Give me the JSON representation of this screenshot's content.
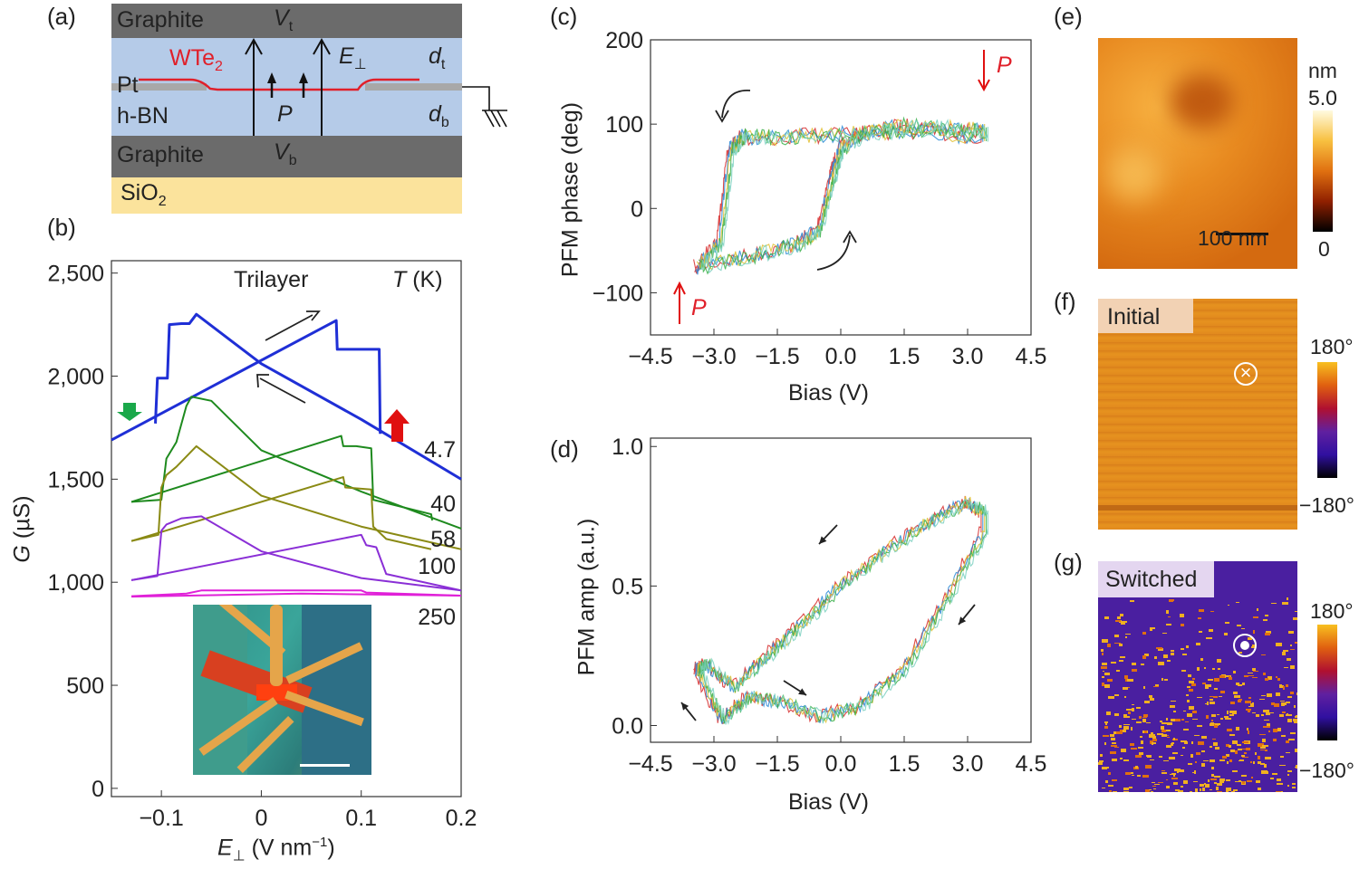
{
  "panels": {
    "a": "(a)",
    "b": "(b)",
    "c": "(c)",
    "d": "(d)",
    "e": "(e)",
    "f": "(f)",
    "g": "(g)"
  },
  "diagram_a": {
    "graphite_top": "Graphite",
    "vt_var": "V",
    "vt_sub": "t",
    "wte2": "WTe",
    "wte2_sub": "2",
    "e_var": "E",
    "e_sub": "⊥",
    "dt_var": "d",
    "dt_sub": "t",
    "pt": "Pt",
    "hbn": "h-BN",
    "p": "P",
    "db_var": "d",
    "db_sub": "b",
    "graphite_bottom": "Graphite",
    "vb_var": "V",
    "vb_sub": "b",
    "sio2": "SiO",
    "sio2_sub": "2",
    "colors": {
      "graphite": "#6b6b6b",
      "hbn": "#b5cbe8",
      "sio2": "#fbe39c",
      "wte2": "#e0202a",
      "pt": "#a8a8a8"
    }
  },
  "chart_data": [
    {
      "panel": "b",
      "type": "line",
      "title": "Trilayer",
      "legend_title_var": "T",
      "legend_title_unit": "(K)",
      "xlabel_var": "E",
      "xlabel_sub": "⊥",
      "xlabel_unit": "(V nm",
      "xlabel_sup": "−1",
      "xlabel_close": ")",
      "ylabel_var": "G",
      "ylabel_unit": "(µS)",
      "xlim": [
        -0.15,
        0.2
      ],
      "ylim": [
        -40,
        2560
      ],
      "xticks": [
        {
          "v": -0.1,
          "label": "−0.1"
        },
        {
          "v": 0,
          "label": "0"
        },
        {
          "v": 0.1,
          "label": "0.1"
        },
        {
          "v": 0.2,
          "label": "0.2"
        }
      ],
      "yticks": [
        {
          "v": 0,
          "label": "0"
        },
        {
          "v": 500,
          "label": "500"
        },
        {
          "v": 1000,
          "label": "1,000"
        },
        {
          "v": 1500,
          "label": "1,500"
        },
        {
          "v": 2000,
          "label": "2,000"
        },
        {
          "v": 2500,
          "label": "2,500"
        }
      ],
      "series": [
        {
          "name": "4.7",
          "color": "#1f2fd6",
          "width": 3,
          "forward": [
            [
              -0.15,
              1690
            ],
            [
              0.075,
              2270
            ],
            [
              0.076,
              2130
            ],
            [
              0.118,
              2130
            ],
            [
              0.119,
              1720
            ]
          ],
          "backward": [
            [
              0.2,
              1500
            ],
            [
              0.1,
              1790
            ],
            [
              0,
              2060
            ],
            [
              -0.065,
              2300
            ],
            [
              -0.072,
              2255
            ],
            [
              -0.08,
              2255
            ],
            [
              -0.092,
              2250
            ],
            [
              -0.094,
              1990
            ],
            [
              -0.104,
              1990
            ],
            [
              -0.106,
              1770
            ]
          ]
        },
        {
          "name": "40",
          "color": "#1e8a1e",
          "width": 2,
          "forward": [
            [
              -0.13,
              1390
            ],
            [
              0.08,
              1710
            ],
            [
              0.082,
              1660
            ],
            [
              0.095,
              1660
            ],
            [
              0.11,
              1650
            ],
            [
              0.112,
              1400
            ],
            [
              0.17,
              1330
            ],
            [
              0.171,
              1300
            ]
          ],
          "backward": [
            [
              0.2,
              1260
            ],
            [
              0.1,
              1440
            ],
            [
              0,
              1640
            ],
            [
              -0.05,
              1880
            ],
            [
              -0.07,
              1900
            ],
            [
              -0.075,
              1855
            ],
            [
              -0.085,
              1680
            ],
            [
              -0.09,
              1640
            ],
            [
              -0.095,
              1600
            ],
            [
              -0.1,
              1400
            ],
            [
              -0.13,
              1390
            ]
          ]
        },
        {
          "name": "58",
          "color": "#8a8a14",
          "width": 2,
          "forward": [
            [
              -0.13,
              1200
            ],
            [
              0.082,
              1510
            ],
            [
              0.084,
              1460
            ],
            [
              0.11,
              1450
            ],
            [
              0.112,
              1270
            ],
            [
              0.125,
              1210
            ],
            [
              0.17,
              1160
            ]
          ],
          "backward": [
            [
              0.2,
              1160
            ],
            [
              0.1,
              1270
            ],
            [
              0,
              1420
            ],
            [
              -0.065,
              1660
            ],
            [
              -0.075,
              1610
            ],
            [
              -0.085,
              1560
            ],
            [
              -0.095,
              1520
            ],
            [
              -0.1,
              1460
            ],
            [
              -0.103,
              1230
            ],
            [
              -0.13,
              1200
            ]
          ]
        },
        {
          "name": "100",
          "color": "#8a2fd6",
          "width": 2,
          "forward": [
            [
              -0.13,
              1010
            ],
            [
              0.1,
              1230
            ],
            [
              0.105,
              1180
            ],
            [
              0.115,
              1170
            ],
            [
              0.125,
              1040
            ],
            [
              0.2,
              960
            ]
          ],
          "backward": [
            [
              0.2,
              960
            ],
            [
              0.1,
              1020
            ],
            [
              0,
              1150
            ],
            [
              -0.06,
              1320
            ],
            [
              -0.08,
              1310
            ],
            [
              -0.095,
              1280
            ],
            [
              -0.1,
              1250
            ],
            [
              -0.104,
              1030
            ],
            [
              -0.13,
              1010
            ]
          ]
        },
        {
          "name": "250",
          "color": "#e020d8",
          "width": 2,
          "forward": [
            [
              -0.13,
              930
            ],
            [
              0.04,
              945
            ],
            [
              0.2,
              935
            ]
          ],
          "backward": [
            [
              0.2,
              935
            ],
            [
              0.105,
              950
            ],
            [
              0.1,
              960
            ],
            [
              -0.06,
              960
            ],
            [
              -0.075,
              945
            ],
            [
              -0.13,
              932
            ]
          ]
        }
      ],
      "annotations": {
        "green_arrow": "down",
        "red_arrow": "up",
        "sweep_arrows": [
          "up-right",
          "up-left"
        ]
      }
    },
    {
      "panel": "c",
      "type": "scatter",
      "xlabel": "Bias (V)",
      "ylabel": "PFM phase (deg)",
      "xlim": [
        -4.5,
        4.5
      ],
      "ylim": [
        -150,
        200
      ],
      "xticks": [
        {
          "v": -4.5,
          "label": "−4.5"
        },
        {
          "v": -3,
          "label": "−3.0"
        },
        {
          "v": -1.5,
          "label": "−1.5"
        },
        {
          "v": 0,
          "label": "0.0"
        },
        {
          "v": 1.5,
          "label": "1.5"
        },
        {
          "v": 3,
          "label": "3.0"
        },
        {
          "v": 4.5,
          "label": "4.5"
        }
      ],
      "yticks": [
        {
          "v": -100,
          "label": "−100"
        },
        {
          "v": 0,
          "label": "0"
        },
        {
          "v": 100,
          "label": "100"
        },
        {
          "v": 200,
          "label": "200"
        }
      ],
      "polarization_label": "P",
      "loop": [
        [
          -3.4,
          -70
        ],
        [
          -2,
          -55
        ],
        [
          -1,
          -42
        ],
        [
          -0.5,
          -25
        ],
        [
          -0.2,
          35
        ],
        [
          0,
          70
        ],
        [
          0.5,
          88
        ],
        [
          1.5,
          98
        ],
        [
          2.5,
          95
        ],
        [
          3.4,
          92
        ],
        [
          3.4,
          85
        ],
        [
          1.5,
          92
        ],
        [
          0,
          88
        ],
        [
          -1.5,
          84
        ],
        [
          -2.3,
          85
        ],
        [
          -2.6,
          70
        ],
        [
          -2.85,
          -40
        ],
        [
          -3.4,
          -72
        ]
      ],
      "series_colors": [
        "#d62a2a",
        "#2a8ad6",
        "#e0c030",
        "#3ab04a",
        "#7ad0c0"
      ]
    },
    {
      "panel": "d",
      "type": "scatter",
      "xlabel": "Bias (V)",
      "ylabel": "PFM amp (a.u.)",
      "xlim": [
        -4.5,
        4.5
      ],
      "ylim": [
        -0.06,
        1.03
      ],
      "xticks": [
        {
          "v": -4.5,
          "label": "−4.5"
        },
        {
          "v": -3,
          "label": "−3.0"
        },
        {
          "v": -1.5,
          "label": "−1.5"
        },
        {
          "v": 0,
          "label": "0.0"
        },
        {
          "v": 1.5,
          "label": "1.5"
        },
        {
          "v": 3,
          "label": "3.0"
        },
        {
          "v": 4.5,
          "label": "4.5"
        }
      ],
      "yticks": [
        {
          "v": 0,
          "label": "0.0"
        },
        {
          "v": 0.5,
          "label": "0.5"
        },
        {
          "v": 1,
          "label": "1.0"
        }
      ],
      "loop": [
        [
          -3.4,
          0.2
        ],
        [
          -2.8,
          0.02
        ],
        [
          -2.2,
          0.1
        ],
        [
          -1.5,
          0.09
        ],
        [
          -0.5,
          0.03
        ],
        [
          0.5,
          0.07
        ],
        [
          1.5,
          0.2
        ],
        [
          2.5,
          0.45
        ],
        [
          3.4,
          0.7
        ],
        [
          3.4,
          0.76
        ],
        [
          3.0,
          0.8
        ],
        [
          2,
          0.72
        ],
        [
          1,
          0.62
        ],
        [
          0,
          0.5
        ],
        [
          -1,
          0.35
        ],
        [
          -1.8,
          0.24
        ],
        [
          -2.5,
          0.14
        ],
        [
          -3.2,
          0.22
        ],
        [
          -3.4,
          0.2
        ]
      ],
      "series_colors": [
        "#d62a2a",
        "#2a8ad6",
        "#e0c030",
        "#3ab04a",
        "#7ad0c0"
      ]
    }
  ],
  "panel_e": {
    "unit": "nm",
    "max": "5.0",
    "min": "0",
    "scale_bar": "100 nm"
  },
  "panel_f": {
    "label": "Initial",
    "max": "180°",
    "min": "−180°"
  },
  "panel_g": {
    "label": "Switched",
    "max": "180°",
    "min": "−180°"
  }
}
